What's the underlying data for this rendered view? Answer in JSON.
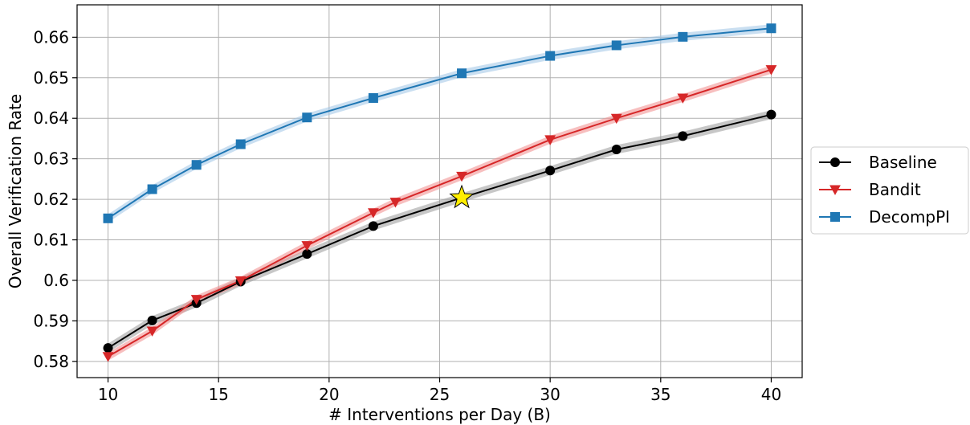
{
  "chart_data": {
    "type": "line",
    "title": "",
    "xlabel": "# Interventions per Day (B)",
    "ylabel": "Overall Verification Rate",
    "xlim": [
      8.6,
      41.4
    ],
    "ylim": [
      0.576,
      0.668
    ],
    "xticks": [
      10,
      15,
      20,
      25,
      30,
      35,
      40
    ],
    "xtick_labels": [
      "10",
      "15",
      "20",
      "25",
      "30",
      "35",
      "40"
    ],
    "yticks": [
      0.58,
      0.59,
      0.6,
      0.61,
      0.62,
      0.63,
      0.64,
      0.65,
      0.66
    ],
    "ytick_labels": [
      "0.58",
      "0.59",
      "0.6",
      "0.61",
      "0.62",
      "0.63",
      "0.64",
      "0.65",
      "0.66"
    ],
    "grid": true,
    "legend_position": "outside-right",
    "series": [
      {
        "name": "Baseline",
        "color": "#000000",
        "band_color": "#999999",
        "marker": "circle",
        "x": [
          10,
          12,
          14,
          16,
          19,
          22,
          26,
          30,
          33,
          36,
          40
        ],
        "y": [
          0.5833,
          0.5901,
          0.5944,
          0.5997,
          0.6065,
          0.6134,
          0.6204,
          0.6271,
          0.6323,
          0.6356,
          0.6409
        ],
        "band": 0.0011
      },
      {
        "name": "Bandit",
        "color": "#d62728",
        "band_color": "#f08a8b",
        "marker": "triangle-down",
        "x": [
          10,
          12,
          14,
          16,
          19,
          22,
          23,
          26,
          30,
          33,
          36,
          40
        ],
        "y": [
          0.5812,
          0.5875,
          0.5953,
          0.5999,
          0.6086,
          0.6167,
          0.6193,
          0.6257,
          0.6347,
          0.64,
          0.645,
          0.652
        ],
        "band": 0.001
      },
      {
        "name": "DecompPI",
        "color": "#1f77b4",
        "band_color": "#9ec5e6",
        "marker": "square",
        "x": [
          10,
          12,
          14,
          16,
          19,
          22,
          26,
          30,
          33,
          36,
          40
        ],
        "y": [
          0.6153,
          0.6225,
          0.6285,
          0.6336,
          0.6402,
          0.645,
          0.6511,
          0.6554,
          0.658,
          0.6601,
          0.6622
        ],
        "band": 0.001
      }
    ],
    "annotations": [
      {
        "type": "star-marker",
        "x": 26,
        "y": 0.6204,
        "color": "#ffee00"
      }
    ]
  }
}
